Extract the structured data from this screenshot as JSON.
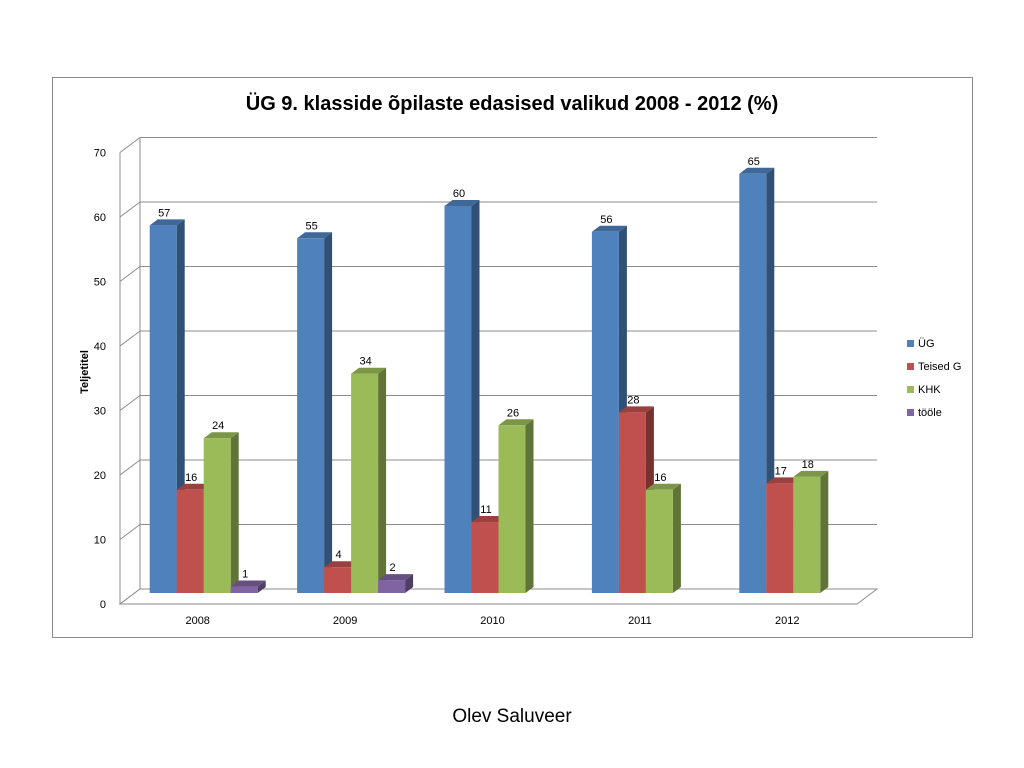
{
  "chart_data": {
    "type": "bar",
    "title": "ÜG 9. klasside õpilaste edasised valikud 2008 - 2012 (%)",
    "xlabel": "",
    "ylabel": "Teljetitel",
    "ylim": [
      0,
      70
    ],
    "yticks": [
      0,
      10,
      20,
      30,
      40,
      50,
      60,
      70
    ],
    "grid": true,
    "three_d": true,
    "legend_position": "right",
    "categories": [
      "2008",
      "2009",
      "2010",
      "2011",
      "2012"
    ],
    "series": [
      {
        "name": "ÜG",
        "color": "#4f81bd",
        "values": [
          57,
          55,
          60,
          56,
          65
        ]
      },
      {
        "name": "Teised G",
        "color": "#c0504d",
        "values": [
          16,
          4,
          11,
          28,
          17
        ]
      },
      {
        "name": "KHK",
        "color": "#9bbb59",
        "values": [
          24,
          34,
          26,
          16,
          18
        ]
      },
      {
        "name": "tööle",
        "color": "#8064a2",
        "values": [
          1,
          2,
          null,
          null,
          null
        ]
      }
    ]
  },
  "footer": {
    "author": "Olev Saluveer"
  }
}
